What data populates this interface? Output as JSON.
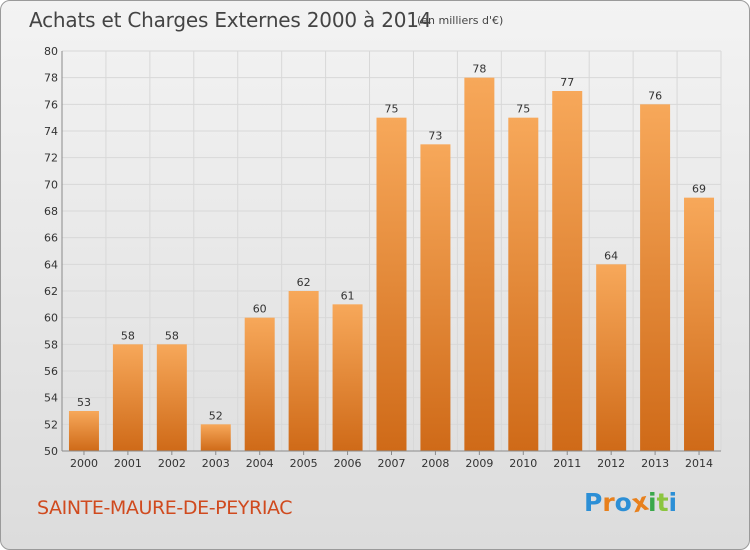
{
  "header": {
    "title": "Achats et Charges Externes 2000 à 2014",
    "unit": "(en milliers d'€)"
  },
  "footer": {
    "place": "SAINTE-MAURE-DE-PEYRIAC",
    "logo_letters": [
      "P",
      "r",
      "o",
      "x",
      "i",
      "t",
      "i"
    ]
  },
  "colors": {
    "bar_top": "#f7a85a",
    "bar_bottom": "#cf6a18",
    "place_text": "#d04a1e",
    "grid": "#d8d8d8",
    "logo": [
      "#2c8fd6",
      "#e8801c",
      "#2c8fd6",
      "#e8801c",
      "#3aa84a",
      "#8cc53f",
      "#2c8fd6"
    ]
  },
  "chart_data": {
    "type": "bar",
    "title": "Achats et Charges Externes 2000 à 2014",
    "categories": [
      "2000",
      "2001",
      "2002",
      "2003",
      "2004",
      "2005",
      "2006",
      "2007",
      "2008",
      "2009",
      "2010",
      "2011",
      "2012",
      "2013",
      "2014"
    ],
    "values": [
      53,
      58,
      58,
      52,
      60,
      62,
      61,
      75,
      73,
      78,
      75,
      77,
      64,
      76,
      69
    ],
    "ylim": [
      50,
      80
    ],
    "yticks": [
      50,
      52,
      54,
      56,
      58,
      60,
      62,
      64,
      66,
      68,
      70,
      72,
      74,
      76,
      78,
      80
    ],
    "grid": true,
    "legend": "none"
  }
}
